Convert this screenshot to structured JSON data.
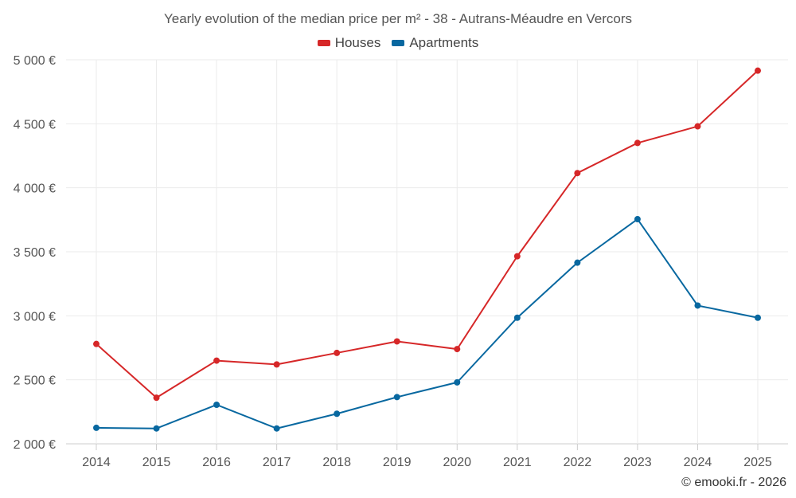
{
  "chart_data": {
    "type": "line",
    "title": "Yearly evolution of the median price per m² - 38 - Autrans-Méaudre en Vercors",
    "xlabel": "",
    "ylabel": "",
    "categories": [
      "2014",
      "2015",
      "2016",
      "2017",
      "2018",
      "2019",
      "2020",
      "2021",
      "2022",
      "2023",
      "2024",
      "2025"
    ],
    "series": [
      {
        "name": "Houses",
        "color": "#d62728",
        "values": [
          2780,
          2360,
          2650,
          2620,
          2710,
          2800,
          2740,
          3465,
          4115,
          4350,
          4480,
          4915
        ]
      },
      {
        "name": "Apartments",
        "color": "#0868a0",
        "values": [
          2125,
          2120,
          2305,
          2120,
          2235,
          2365,
          2480,
          2985,
          3415,
          3755,
          3080,
          2985
        ]
      }
    ],
    "ylim": [
      2000,
      5000
    ],
    "yticks": [
      2000,
      2500,
      3000,
      3500,
      4000,
      4500,
      5000
    ],
    "ytick_labels": [
      "2 000 €",
      "2 500 €",
      "3 000 €",
      "3 500 €",
      "4 000 €",
      "4 500 €",
      "5 000 €"
    ],
    "grid": true,
    "legend_position": "top-center"
  },
  "credit": "© emooki.fr - 2026"
}
